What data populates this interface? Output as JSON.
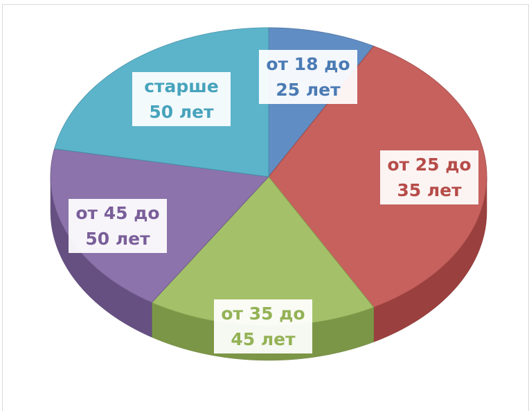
{
  "chart_data": {
    "type": "pie",
    "categories": [
      "от 18 до 25 лет",
      "от 25 до 35 лет",
      "от 35 до 45 лет",
      "от 45 до 50 лет",
      "старше 50 лет"
    ],
    "values": [
      8,
      34,
      17,
      19,
      22
    ],
    "colors": [
      "#4f81bd",
      "#c0504d",
      "#9bbb59",
      "#8064a2",
      "#4bacc6"
    ]
  }
}
